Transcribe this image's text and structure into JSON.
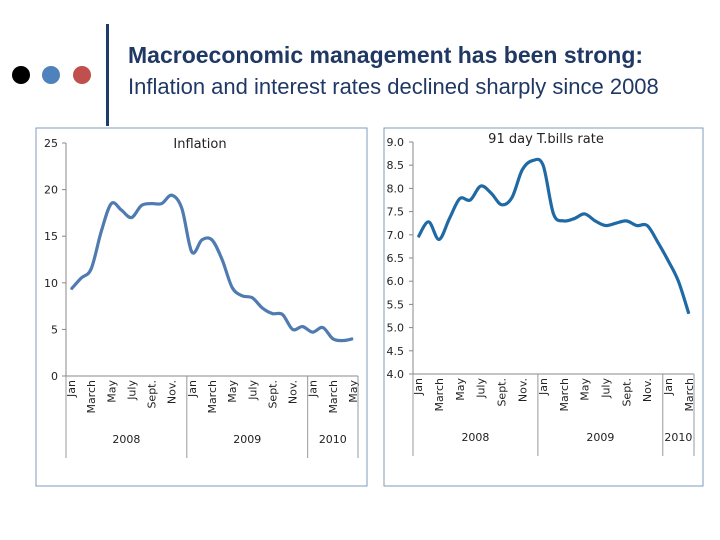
{
  "header": {
    "title": "Macroeconomic management has been strong:",
    "subtitle": "Inflation and interest rates declined sharply since 2008",
    "dot_colors": [
      "#000000",
      "#4f81bd",
      "#c0504d"
    ]
  },
  "chart_data": [
    {
      "type": "line",
      "title": "Inflation",
      "line_color": "#4f7bb0",
      "ylim": [
        0,
        25
      ],
      "yticks": [
        "0",
        "5",
        "10",
        "15",
        "20",
        "25"
      ],
      "x_labels": [
        "Jan",
        "",
        "March",
        "",
        "May",
        "",
        "July",
        "",
        "Sept.",
        "",
        "Nov.",
        "",
        "Jan",
        "",
        "March",
        "",
        "May",
        "",
        "July",
        "",
        "Sept.",
        "",
        "Nov.",
        "",
        "Jan",
        "",
        "March",
        "",
        "May"
      ],
      "year_groups": [
        {
          "label": "2008",
          "months": 12
        },
        {
          "label": "2009",
          "months": 12
        },
        {
          "label": "2010",
          "months": 5
        }
      ],
      "values": [
        9.3,
        10.5,
        11.5,
        15.5,
        18.5,
        17.8,
        17.0,
        18.3,
        18.5,
        18.5,
        19.4,
        18.0,
        13.3,
        14.6,
        14.6,
        12.5,
        9.5,
        8.6,
        8.4,
        7.3,
        6.7,
        6.6,
        5.0,
        5.3,
        4.7,
        5.2,
        4.0,
        3.8,
        4.0
      ],
      "grid": false
    },
    {
      "type": "line",
      "title": "91 day T.bills rate",
      "line_color": "#1f6aa5",
      "ylim": [
        4.0,
        9.0
      ],
      "yticks": [
        "4.0",
        "4.5",
        "5.0",
        "5.5",
        "6.0",
        "6.5",
        "7.0",
        "7.5",
        "8.0",
        "8.5",
        "9.0"
      ],
      "x_labels": [
        "Jan",
        "",
        "March",
        "",
        "May",
        "",
        "July",
        "",
        "Sept.",
        "",
        "Nov.",
        "",
        "Jan",
        "",
        "March",
        "",
        "May",
        "",
        "July",
        "",
        "Sept.",
        "",
        "Nov.",
        "",
        "Jan",
        "",
        "March"
      ],
      "year_groups": [
        {
          "label": "2008",
          "months": 12
        },
        {
          "label": "2009",
          "months": 12
        },
        {
          "label": "2010",
          "months": 3
        }
      ],
      "values": [
        6.95,
        7.28,
        6.9,
        7.35,
        7.78,
        7.75,
        8.05,
        7.9,
        7.65,
        7.8,
        8.4,
        8.6,
        8.5,
        7.45,
        7.3,
        7.35,
        7.45,
        7.3,
        7.2,
        7.25,
        7.3,
        7.2,
        7.2,
        6.85,
        6.45,
        6.0,
        5.3
      ],
      "grid": false
    }
  ]
}
